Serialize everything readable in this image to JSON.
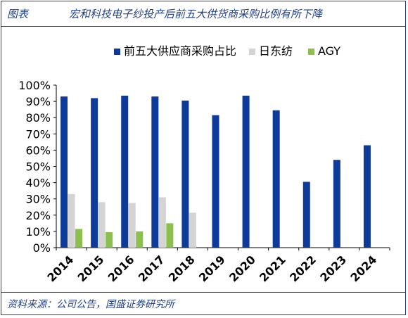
{
  "figure": {
    "label": "图表",
    "title": "宏和科技电子纱投产后前五大供货商采购比例有所下降",
    "source": "资料来源：公司公告，国盛证券研究所"
  },
  "chart_data": {
    "type": "bar",
    "categories": [
      "2014",
      "2015",
      "2016",
      "2017",
      "2018",
      "2019",
      "2020",
      "2021",
      "2022",
      "2023",
      "2024"
    ],
    "series": [
      {
        "name": "前五大供应商采购占比",
        "color": "#0e3a99",
        "values": [
          93,
          92,
          93.5,
          93,
          90.5,
          81.5,
          93.5,
          84.5,
          40.5,
          54,
          63
        ]
      },
      {
        "name": "日东纺",
        "color": "#d4d4d4",
        "values": [
          33,
          28,
          27.5,
          31,
          21.5,
          null,
          null,
          null,
          null,
          null,
          null
        ]
      },
      {
        "name": "AGY",
        "color": "#8dbf4e",
        "values": [
          11.5,
          9.5,
          10,
          15,
          null,
          null,
          null,
          null,
          null,
          null,
          null
        ]
      }
    ],
    "yticks": [
      "0%",
      "10%",
      "20%",
      "30%",
      "40%",
      "50%",
      "60%",
      "70%",
      "80%",
      "90%",
      "100%"
    ],
    "ylim": [
      0,
      100
    ],
    "legend_position": "top",
    "grid": false
  }
}
